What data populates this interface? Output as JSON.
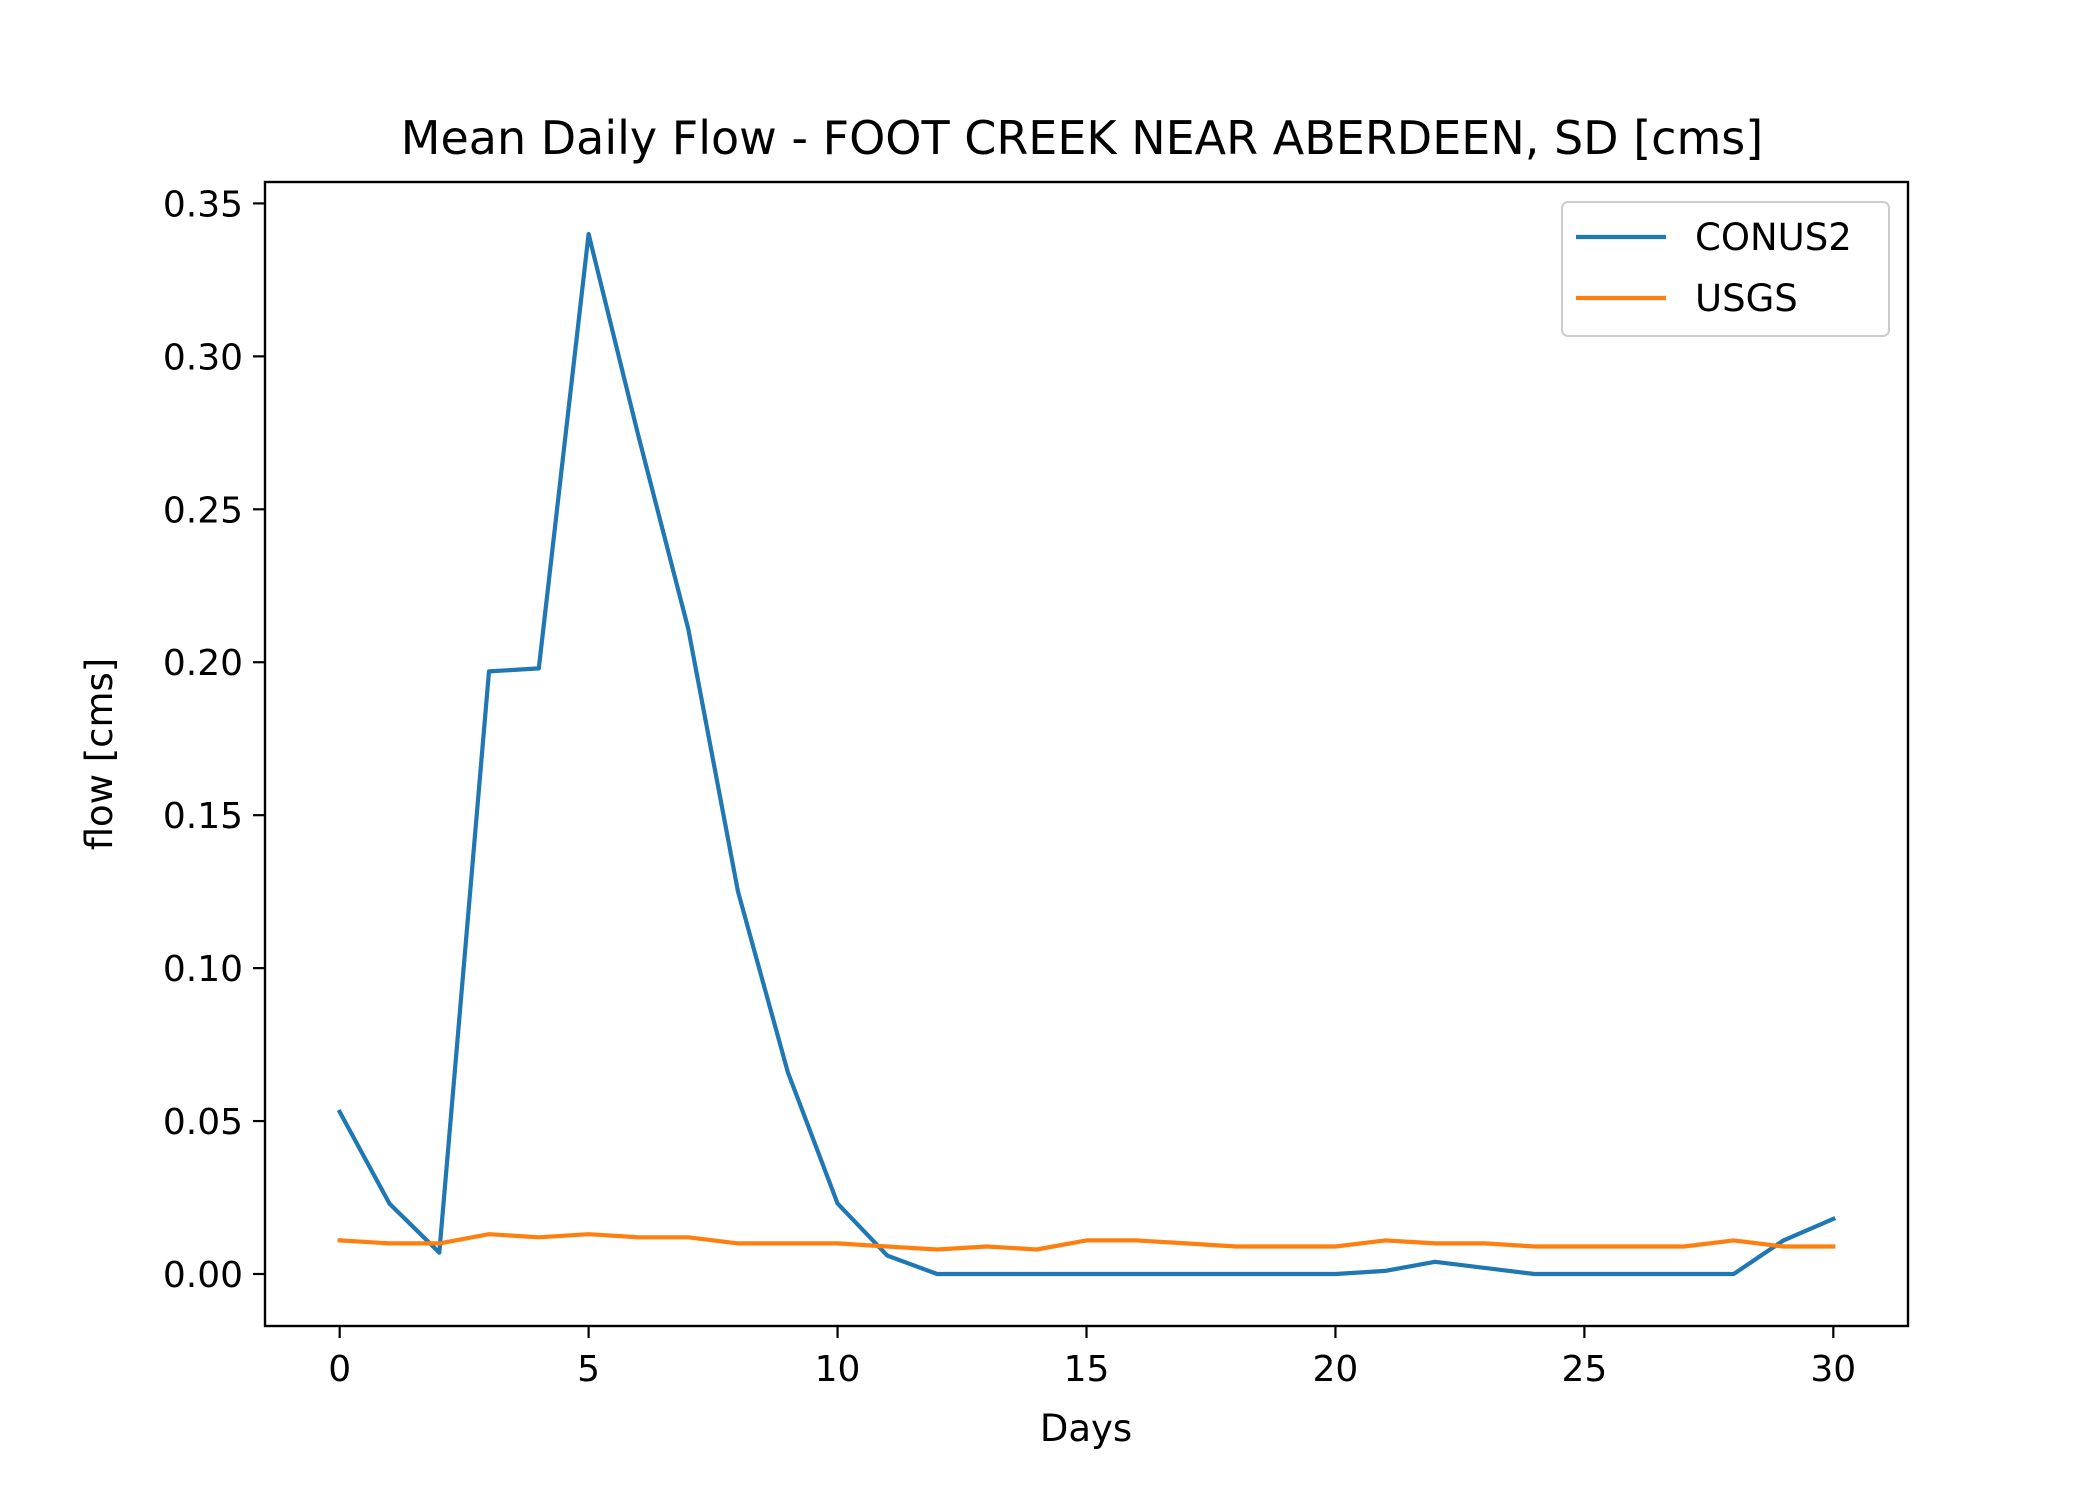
{
  "chart_data": {
    "type": "line",
    "title": "Mean Daily Flow - FOOT CREEK NEAR ABERDEEN, SD [cms]",
    "xlabel": "Days",
    "ylabel": "flow [cms]",
    "xlim": [
      -1.5,
      31.5
    ],
    "ylim": [
      -0.017,
      0.357
    ],
    "xticks": [
      0,
      5,
      10,
      15,
      20,
      25,
      30
    ],
    "xtick_labels": [
      "0",
      "5",
      "10",
      "15",
      "20",
      "25",
      "30"
    ],
    "yticks": [
      0.0,
      0.05,
      0.1,
      0.15,
      0.2,
      0.25,
      0.3,
      0.35
    ],
    "ytick_labels": [
      "0.00",
      "0.05",
      "0.10",
      "0.15",
      "0.20",
      "0.25",
      "0.30",
      "0.35"
    ],
    "grid": false,
    "legend_position": "top-right",
    "x": [
      0,
      1,
      2,
      3,
      4,
      5,
      6,
      7,
      8,
      9,
      10,
      11,
      12,
      13,
      14,
      15,
      16,
      17,
      18,
      19,
      20,
      21,
      22,
      23,
      24,
      25,
      26,
      27,
      28,
      29,
      30
    ],
    "series": [
      {
        "name": "CONUS2",
        "color": "#1f77b4",
        "values": [
          0.053,
          0.023,
          0.007,
          0.197,
          0.198,
          0.34,
          0.274,
          0.211,
          0.125,
          0.066,
          0.023,
          0.006,
          0.0,
          0.0,
          0.0,
          0.0,
          0.0,
          0.0,
          0.0,
          0.0,
          0.0,
          0.001,
          0.004,
          0.002,
          0.0,
          0.0,
          0.0,
          0.0,
          0.0,
          0.011,
          0.018
        ]
      },
      {
        "name": "USGS",
        "color": "#ff7f0e",
        "values": [
          0.011,
          0.01,
          0.01,
          0.013,
          0.012,
          0.013,
          0.012,
          0.012,
          0.01,
          0.01,
          0.01,
          0.009,
          0.008,
          0.009,
          0.008,
          0.011,
          0.011,
          0.01,
          0.009,
          0.009,
          0.009,
          0.011,
          0.01,
          0.01,
          0.009,
          0.009,
          0.009,
          0.009,
          0.011,
          0.009,
          0.009
        ]
      }
    ]
  }
}
